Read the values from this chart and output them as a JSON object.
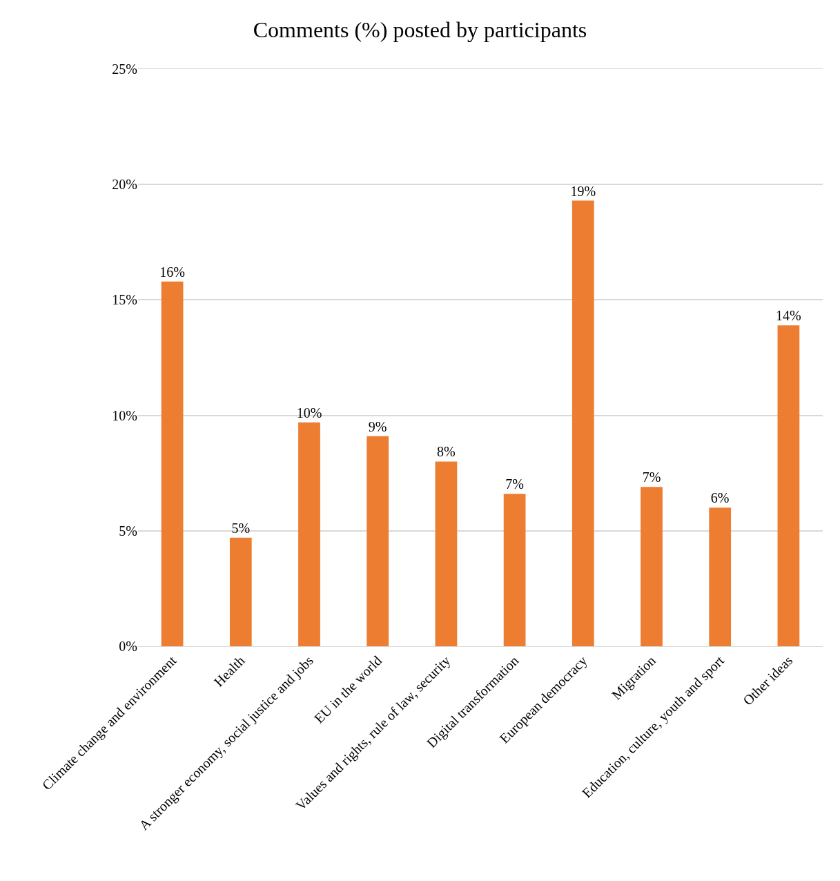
{
  "chart_data": {
    "type": "bar",
    "title": "Comments (%) posted by participants",
    "categories": [
      "Climate change and environment",
      "Health",
      "A stronger economy, social justice and jobs",
      "EU in the world",
      "Values and rights, rule of law, security",
      "Digital transformation",
      "European democracy",
      "Migration",
      "Education, culture, youth and sport",
      "Other ideas"
    ],
    "values": [
      15.8,
      4.7,
      9.7,
      9.1,
      8.0,
      6.6,
      19.3,
      6.9,
      6.0,
      13.9
    ],
    "value_labels": [
      "16%",
      "5%",
      "10%",
      "9%",
      "8%",
      "7%",
      "19%",
      "7%",
      "6%",
      "14%"
    ],
    "color": "#ed7d31",
    "ylim": [
      0,
      25
    ],
    "yticks": [
      {
        "value": 0,
        "label": "0%"
      },
      {
        "value": 5,
        "label": "5%"
      },
      {
        "value": 10,
        "label": "10%"
      },
      {
        "value": 15,
        "label": "15%"
      },
      {
        "value": 20,
        "label": "20%"
      },
      {
        "value": 25,
        "label": "25%"
      }
    ],
    "grid": "y"
  }
}
